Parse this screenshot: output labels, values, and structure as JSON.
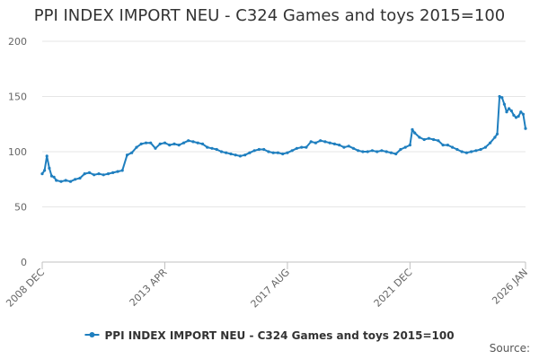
{
  "chart_data": {
    "type": "line",
    "title": "PPI INDEX IMPORT NEU - C324 Games and toys 2015=100",
    "xlabel": "",
    "ylabel": "",
    "x_range": [
      "2008-12",
      "2026-01"
    ],
    "ylim": [
      0,
      200
    ],
    "y_ticks": [
      0,
      50,
      100,
      150,
      200
    ],
    "x_ticks": [
      {
        "date": "2008-12",
        "label": "2008 DEC"
      },
      {
        "date": "2013-04",
        "label": "2013 APR"
      },
      {
        "date": "2017-08",
        "label": "2017 AUG"
      },
      {
        "date": "2021-12",
        "label": "2021 DEC"
      },
      {
        "date": "2026-01",
        "label": "2026 JAN"
      }
    ],
    "grid": "horizontal",
    "legend_position": "bottom",
    "series": [
      {
        "name": "PPI INDEX IMPORT NEU - C324 Games and toys 2015=100",
        "color": "#1f7fbf",
        "points": [
          [
            "2008-12",
            80
          ],
          [
            "2009-01",
            83
          ],
          [
            "2009-02",
            96
          ],
          [
            "2009-03",
            85
          ],
          [
            "2009-04",
            78
          ],
          [
            "2009-05",
            77
          ],
          [
            "2009-06",
            74
          ],
          [
            "2009-08",
            73
          ],
          [
            "2009-10",
            74
          ],
          [
            "2009-12",
            73
          ],
          [
            "2010-02",
            75
          ],
          [
            "2010-04",
            76
          ],
          [
            "2010-06",
            80
          ],
          [
            "2010-08",
            81
          ],
          [
            "2010-10",
            79
          ],
          [
            "2010-12",
            80
          ],
          [
            "2011-02",
            79
          ],
          [
            "2011-04",
            80
          ],
          [
            "2011-06",
            81
          ],
          [
            "2011-08",
            82
          ],
          [
            "2011-10",
            83
          ],
          [
            "2011-12",
            97
          ],
          [
            "2012-02",
            99
          ],
          [
            "2012-04",
            104
          ],
          [
            "2012-06",
            107
          ],
          [
            "2012-08",
            108
          ],
          [
            "2012-10",
            108
          ],
          [
            "2012-12",
            103
          ],
          [
            "2013-02",
            107
          ],
          [
            "2013-04",
            108
          ],
          [
            "2013-06",
            106
          ],
          [
            "2013-08",
            107
          ],
          [
            "2013-10",
            106
          ],
          [
            "2013-12",
            108
          ],
          [
            "2014-02",
            110
          ],
          [
            "2014-04",
            109
          ],
          [
            "2014-06",
            108
          ],
          [
            "2014-08",
            107
          ],
          [
            "2014-10",
            104
          ],
          [
            "2014-12",
            103
          ],
          [
            "2015-02",
            102
          ],
          [
            "2015-04",
            100
          ],
          [
            "2015-06",
            99
          ],
          [
            "2015-08",
            98
          ],
          [
            "2015-10",
            97
          ],
          [
            "2015-12",
            96
          ],
          [
            "2016-02",
            97
          ],
          [
            "2016-04",
            99
          ],
          [
            "2016-06",
            101
          ],
          [
            "2016-08",
            102
          ],
          [
            "2016-10",
            102
          ],
          [
            "2016-12",
            100
          ],
          [
            "2017-02",
            99
          ],
          [
            "2017-04",
            99
          ],
          [
            "2017-06",
            98
          ],
          [
            "2017-08",
            99
          ],
          [
            "2017-10",
            101
          ],
          [
            "2017-12",
            103
          ],
          [
            "2018-02",
            104
          ],
          [
            "2018-04",
            104
          ],
          [
            "2018-06",
            109
          ],
          [
            "2018-08",
            108
          ],
          [
            "2018-10",
            110
          ],
          [
            "2018-12",
            109
          ],
          [
            "2019-02",
            108
          ],
          [
            "2019-04",
            107
          ],
          [
            "2019-06",
            106
          ],
          [
            "2019-08",
            104
          ],
          [
            "2019-10",
            105
          ],
          [
            "2019-12",
            103
          ],
          [
            "2020-02",
            101
          ],
          [
            "2020-04",
            100
          ],
          [
            "2020-06",
            100
          ],
          [
            "2020-08",
            101
          ],
          [
            "2020-10",
            100
          ],
          [
            "2020-12",
            101
          ],
          [
            "2021-02",
            100
          ],
          [
            "2021-04",
            99
          ],
          [
            "2021-06",
            98
          ],
          [
            "2021-08",
            102
          ],
          [
            "2021-10",
            104
          ],
          [
            "2021-12",
            106
          ],
          [
            "2022-01",
            120
          ],
          [
            "2022-02",
            117
          ],
          [
            "2022-04",
            113
          ],
          [
            "2022-06",
            111
          ],
          [
            "2022-08",
            112
          ],
          [
            "2022-10",
            111
          ],
          [
            "2022-12",
            110
          ],
          [
            "2023-02",
            106
          ],
          [
            "2023-04",
            106
          ],
          [
            "2023-06",
            104
          ],
          [
            "2023-08",
            102
          ],
          [
            "2023-10",
            100
          ],
          [
            "2023-12",
            99
          ],
          [
            "2024-02",
            100
          ],
          [
            "2024-04",
            101
          ],
          [
            "2024-06",
            102
          ],
          [
            "2024-08",
            104
          ],
          [
            "2024-10",
            108
          ],
          [
            "2024-12",
            113
          ],
          [
            "2025-01",
            116
          ],
          [
            "2025-02",
            150
          ],
          [
            "2025-03",
            149
          ],
          [
            "2025-04",
            143
          ],
          [
            "2025-05",
            136
          ],
          [
            "2025-06",
            139
          ],
          [
            "2025-07",
            137
          ],
          [
            "2025-08",
            133
          ],
          [
            "2025-09",
            131
          ],
          [
            "2025-10",
            132
          ],
          [
            "2025-11",
            136
          ],
          [
            "2025-12",
            134
          ],
          [
            "2026-01",
            121
          ]
        ]
      }
    ]
  },
  "source_label": "Source:"
}
